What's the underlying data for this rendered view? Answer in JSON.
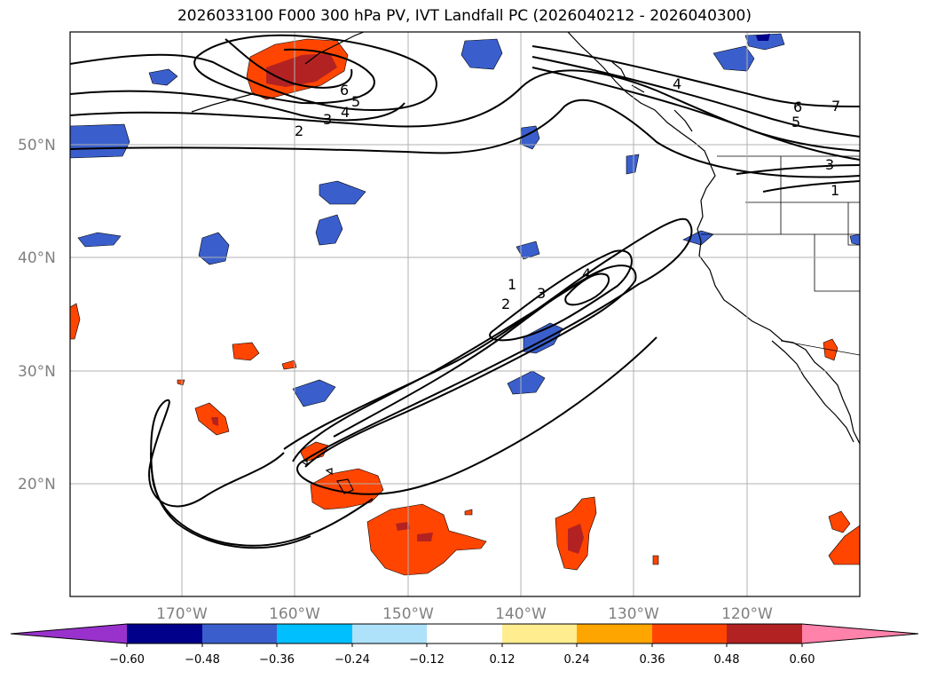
{
  "title": "2026033100 F000 300 hPa PV, IVT Landfall PC (2026040212 - 2026040300)",
  "lat_labels": [
    "50°N",
    "40°N",
    "30°N",
    "20°N"
  ],
  "lon_labels": [
    "170°W",
    "160°W",
    "150°W",
    "140°W",
    "130°W",
    "120°W"
  ],
  "colorbar": {
    "ticks": [
      "−0.60",
      "−0.48",
      "−0.36",
      "−0.24",
      "−0.12",
      "0.12",
      "0.24",
      "0.36",
      "0.48",
      "0.60"
    ],
    "colors": [
      "#9932CC",
      "#00008B",
      "#3A5FCD",
      "#00BFFF",
      "#ADE2FA",
      "#FFFFFF",
      "#FFED8F",
      "#FFA500",
      "#FF4500",
      "#B22222",
      "#FF82AB"
    ]
  },
  "contour_labels": {
    "north": [
      "6",
      "5",
      "4",
      "3",
      "2"
    ],
    "east": [
      "4",
      "6",
      "5",
      "7",
      "3",
      "1"
    ],
    "central": [
      "1",
      "2",
      "3",
      "4"
    ]
  }
}
